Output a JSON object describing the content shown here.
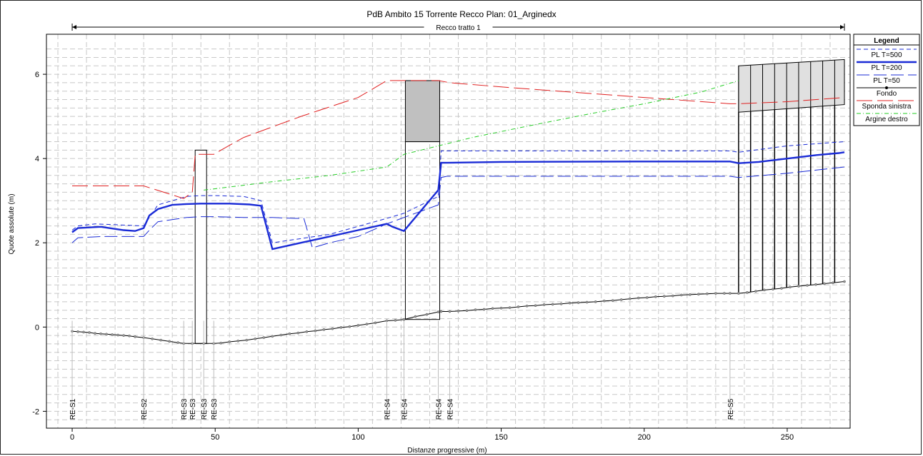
{
  "chart_data": {
    "type": "line",
    "title": "PdB Ambito 15 Torrente Recco      Plan: 01_Arginedx",
    "reach_label": "Recco tratto 1",
    "xlabel": "Distanze progressive  (m)",
    "ylabel": "Quote assolute (m)",
    "xlim": [
      -9,
      272
    ],
    "ylim": [
      -2.4,
      6.95
    ],
    "xticks": [
      0,
      50,
      100,
      150,
      200,
      250
    ],
    "yticks": [
      -2,
      0,
      2,
      4,
      6
    ],
    "grid": true,
    "legend": {
      "title": "Legend",
      "position": "right",
      "entries": [
        {
          "label": "PL  T=500",
          "color": "#1a2bd6",
          "style": "dash"
        },
        {
          "label": "PL  T=200",
          "color": "#1a2bd6",
          "style": "thick"
        },
        {
          "label": "PL  T=50",
          "color": "#1a2bd6",
          "style": "longdash"
        },
        {
          "label": "Fondo",
          "color": "#000000",
          "style": "points"
        },
        {
          "label": "Sponda sinistra",
          "color": "#e02020",
          "style": "longdash"
        },
        {
          "label": "Argine destro",
          "color": "#22cc22",
          "style": "dashdot"
        }
      ]
    },
    "section_labels": [
      {
        "x": 0,
        "text": "RE-S1"
      },
      {
        "x": 25,
        "text": "RE-S2"
      },
      {
        "x": 39,
        "text": "RE-S3"
      },
      {
        "x": 42,
        "text": "RE-S3"
      },
      {
        "x": 46,
        "text": "RE-S3"
      },
      {
        "x": 49.5,
        "text": "RE-S3"
      },
      {
        "x": 110,
        "text": "RE-S4"
      },
      {
        "x": 116,
        "text": "RE-S4"
      },
      {
        "x": 128,
        "text": "RE-S4"
      },
      {
        "x": 132,
        "text": "RE-S4"
      },
      {
        "x": 230,
        "text": "RE-S5"
      }
    ],
    "series": [
      {
        "name": "PL  T=500",
        "x": [
          0,
          2,
          8,
          25,
          27,
          30,
          40,
          45,
          50,
          60,
          66,
          70,
          90,
          110,
          116,
          128,
          129,
          131,
          230,
          233,
          250,
          270
        ],
        "y": [
          2.3,
          2.4,
          2.45,
          2.4,
          2.6,
          2.9,
          3.1,
          3.12,
          3.12,
          3.1,
          3.0,
          2.0,
          2.2,
          2.58,
          2.7,
          3.1,
          4.18,
          4.18,
          4.18,
          4.15,
          4.3,
          4.4
        ]
      },
      {
        "name": "PL  T=200",
        "x": [
          0,
          2,
          10,
          18,
          22,
          25,
          27,
          30,
          35,
          40,
          45,
          50,
          55,
          62,
          66,
          70,
          80,
          90,
          100,
          110,
          112,
          116,
          128,
          129,
          131,
          150,
          200,
          230,
          233,
          240,
          250,
          260,
          268,
          270
        ],
        "y": [
          2.25,
          2.35,
          2.38,
          2.3,
          2.28,
          2.35,
          2.65,
          2.8,
          2.9,
          2.92,
          2.93,
          2.93,
          2.93,
          2.91,
          2.88,
          1.85,
          2.0,
          2.15,
          2.3,
          2.45,
          2.38,
          2.28,
          3.25,
          3.9,
          3.9,
          3.92,
          3.93,
          3.93,
          3.89,
          3.92,
          4.0,
          4.08,
          4.13,
          4.15
        ]
      },
      {
        "name": "PL  T=50",
        "x": [
          0,
          2,
          10,
          25,
          27,
          30,
          40,
          45,
          50,
          60,
          66,
          70,
          78,
          81,
          84,
          90,
          100,
          110,
          116,
          128,
          129,
          131,
          230,
          233,
          250,
          270
        ],
        "y": [
          2.0,
          2.12,
          2.15,
          2.15,
          2.3,
          2.5,
          2.6,
          2.62,
          2.62,
          2.6,
          2.6,
          2.6,
          2.58,
          2.58,
          1.88,
          2.0,
          2.15,
          2.45,
          2.6,
          2.9,
          3.55,
          3.58,
          3.58,
          3.55,
          3.65,
          3.8
        ]
      },
      {
        "name": "Fondo",
        "x": [
          0,
          2,
          4,
          6,
          8,
          10,
          12,
          14,
          16,
          18,
          20,
          22,
          25,
          28,
          31,
          34,
          37,
          39,
          42,
          46,
          49.5,
          52,
          55,
          58,
          61,
          64,
          67,
          70,
          73,
          76,
          79,
          82,
          85,
          88,
          91,
          94,
          97,
          100,
          103,
          106,
          110,
          113,
          116,
          120,
          124,
          128,
          129,
          132,
          135,
          138,
          141,
          144,
          147,
          150,
          153,
          156,
          159,
          162,
          165,
          168,
          171,
          174,
          177,
          180,
          183,
          186,
          189,
          192,
          195,
          198,
          201,
          204,
          207,
          210,
          213,
          216,
          219,
          222,
          225,
          228,
          230,
          233,
          236,
          239,
          242,
          245,
          248,
          251,
          254,
          257,
          260,
          263,
          266,
          270
        ],
        "y": [
          -0.1,
          -0.11,
          -0.12,
          -0.13,
          -0.15,
          -0.16,
          -0.17,
          -0.18,
          -0.19,
          -0.2,
          -0.21,
          -0.23,
          -0.25,
          -0.28,
          -0.31,
          -0.34,
          -0.37,
          -0.39,
          -0.39,
          -0.39,
          -0.39,
          -0.38,
          -0.35,
          -0.33,
          -0.31,
          -0.28,
          -0.25,
          -0.22,
          -0.19,
          -0.16,
          -0.14,
          -0.11,
          -0.09,
          -0.06,
          -0.04,
          -0.01,
          0.01,
          0.04,
          0.07,
          0.1,
          0.15,
          0.16,
          0.18,
          0.25,
          0.3,
          0.36,
          0.37,
          0.37,
          0.38,
          0.39,
          0.41,
          0.42,
          0.44,
          0.45,
          0.46,
          0.48,
          0.5,
          0.51,
          0.53,
          0.54,
          0.55,
          0.57,
          0.58,
          0.59,
          0.6,
          0.62,
          0.63,
          0.65,
          0.67,
          0.69,
          0.7,
          0.72,
          0.73,
          0.74,
          0.76,
          0.77,
          0.78,
          0.79,
          0.8,
          0.8,
          0.8,
          0.8,
          0.82,
          0.85,
          0.88,
          0.9,
          0.92,
          0.95,
          0.97,
          0.99,
          1.01,
          1.03,
          1.05,
          1.08
        ]
      },
      {
        "name": "Sponda sinistra",
        "x": [
          0,
          25,
          39,
          42,
          43,
          46,
          49.5,
          52,
          60,
          80,
          100,
          110,
          116,
          128,
          132,
          150,
          170,
          200,
          230,
          233,
          250,
          270
        ],
        "y": [
          3.35,
          3.35,
          3.05,
          3.2,
          4.1,
          4.1,
          4.1,
          4.2,
          4.5,
          5.0,
          5.45,
          5.85,
          5.85,
          5.85,
          5.8,
          5.7,
          5.6,
          5.45,
          5.3,
          5.3,
          5.35,
          5.45
        ]
      },
      {
        "name": "Argine destro",
        "x": [
          46,
          49.5,
          52,
          70,
          90,
          110,
          116,
          128,
          140,
          160,
          180,
          200,
          220,
          233
        ],
        "y": [
          3.25,
          3.28,
          3.3,
          3.45,
          3.6,
          3.8,
          4.1,
          4.3,
          4.5,
          4.78,
          5.05,
          5.3,
          5.58,
          5.85
        ]
      }
    ],
    "structures": [
      {
        "type": "box",
        "x0": 43,
        "x1": 47,
        "y0": -0.39,
        "y1": 4.2,
        "fill": "#ffffff"
      },
      {
        "type": "box",
        "x0": 116.5,
        "x1": 128.5,
        "y0": 4.4,
        "y1": 5.85,
        "fill": "#c0c0c0"
      },
      {
        "type": "box",
        "x0": 116.5,
        "x1": 128.5,
        "y0": 0.18,
        "y1": 4.4,
        "fill": "none"
      },
      {
        "type": "bridge",
        "x0": 233,
        "x1": 270,
        "top0": 6.2,
        "top1": 6.35,
        "bot0": 5.1,
        "bot1": 5.28,
        "fill": "#e0e0e0",
        "pier_step": 4.2
      }
    ]
  }
}
